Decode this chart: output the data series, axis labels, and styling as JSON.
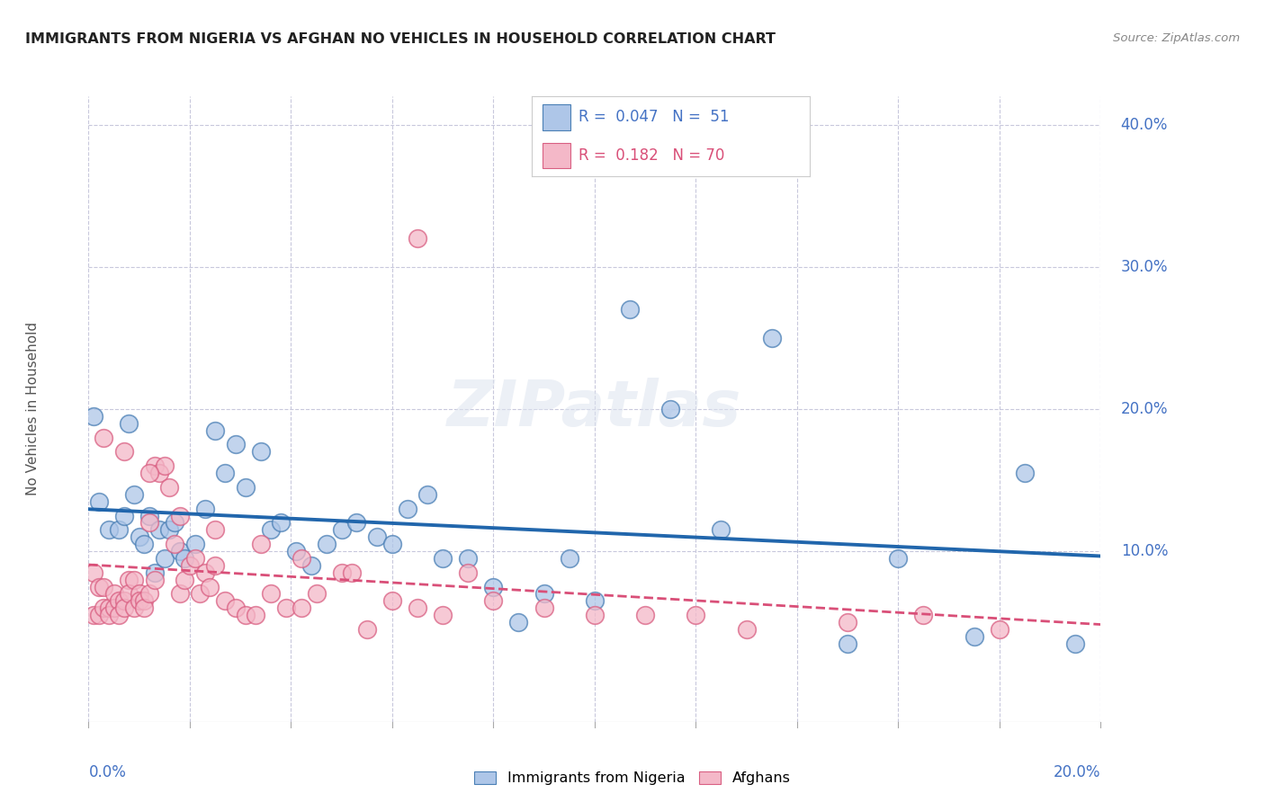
{
  "title": "IMMIGRANTS FROM NIGERIA VS AFGHAN NO VEHICLES IN HOUSEHOLD CORRELATION CHART",
  "source": "Source: ZipAtlas.com",
  "ylabel": "No Vehicles in Household",
  "xlim": [
    0.0,
    0.2
  ],
  "ylim": [
    -0.02,
    0.42
  ],
  "right_ytick_vals": [
    0.4,
    0.3,
    0.2,
    0.1
  ],
  "right_ytick_labels": [
    "40.0%",
    "30.0%",
    "20.0%",
    "10.0%"
  ],
  "legend_line1": "R =  0.047   N =  51",
  "legend_line2": "R =  0.182   N = 70",
  "legend_label1": "Immigrants from Nigeria",
  "legend_label2": "Afghans",
  "color_blue_fill": "#aec6e8",
  "color_blue_edge": "#4a7fb5",
  "color_pink_fill": "#f4b8c8",
  "color_pink_edge": "#d95f82",
  "color_blue_line": "#2166ac",
  "color_pink_line": "#d94f78",
  "grid_color": "#c8c8dc",
  "background": "#ffffff",
  "tick_color": "#888888",
  "text_color": "#333333",
  "label_color": "#4472c4",
  "nigeria_x": [
    0.001,
    0.002,
    0.004,
    0.006,
    0.007,
    0.008,
    0.009,
    0.01,
    0.011,
    0.012,
    0.013,
    0.014,
    0.015,
    0.016,
    0.017,
    0.018,
    0.019,
    0.021,
    0.023,
    0.025,
    0.027,
    0.029,
    0.031,
    0.034,
    0.036,
    0.038,
    0.041,
    0.044,
    0.047,
    0.05,
    0.053,
    0.057,
    0.06,
    0.063,
    0.067,
    0.07,
    0.075,
    0.08,
    0.085,
    0.09,
    0.095,
    0.1,
    0.107,
    0.115,
    0.125,
    0.135,
    0.15,
    0.16,
    0.175,
    0.185,
    0.195
  ],
  "nigeria_y": [
    0.195,
    0.135,
    0.115,
    0.115,
    0.125,
    0.19,
    0.14,
    0.11,
    0.105,
    0.125,
    0.085,
    0.115,
    0.095,
    0.115,
    0.12,
    0.1,
    0.095,
    0.105,
    0.13,
    0.185,
    0.155,
    0.175,
    0.145,
    0.17,
    0.115,
    0.12,
    0.1,
    0.09,
    0.105,
    0.115,
    0.12,
    0.11,
    0.105,
    0.13,
    0.14,
    0.095,
    0.095,
    0.075,
    0.05,
    0.07,
    0.095,
    0.065,
    0.27,
    0.2,
    0.115,
    0.25,
    0.035,
    0.095,
    0.04,
    0.155,
    0.035
  ],
  "afghan_x": [
    0.001,
    0.001,
    0.002,
    0.002,
    0.003,
    0.003,
    0.004,
    0.004,
    0.005,
    0.005,
    0.006,
    0.006,
    0.007,
    0.007,
    0.008,
    0.008,
    0.009,
    0.009,
    0.01,
    0.01,
    0.011,
    0.011,
    0.012,
    0.012,
    0.013,
    0.013,
    0.014,
    0.015,
    0.016,
    0.017,
    0.018,
    0.019,
    0.02,
    0.021,
    0.022,
    0.023,
    0.024,
    0.025,
    0.027,
    0.029,
    0.031,
    0.033,
    0.036,
    0.039,
    0.042,
    0.045,
    0.05,
    0.055,
    0.06,
    0.065,
    0.07,
    0.075,
    0.08,
    0.09,
    0.1,
    0.11,
    0.12,
    0.13,
    0.15,
    0.165,
    0.18,
    0.003,
    0.007,
    0.012,
    0.018,
    0.025,
    0.034,
    0.042,
    0.052,
    0.065
  ],
  "afghan_y": [
    0.085,
    0.055,
    0.075,
    0.055,
    0.075,
    0.06,
    0.06,
    0.055,
    0.07,
    0.06,
    0.065,
    0.055,
    0.065,
    0.06,
    0.08,
    0.07,
    0.08,
    0.06,
    0.07,
    0.065,
    0.065,
    0.06,
    0.12,
    0.07,
    0.16,
    0.08,
    0.155,
    0.16,
    0.145,
    0.105,
    0.07,
    0.08,
    0.09,
    0.095,
    0.07,
    0.085,
    0.075,
    0.09,
    0.065,
    0.06,
    0.055,
    0.055,
    0.07,
    0.06,
    0.06,
    0.07,
    0.085,
    0.045,
    0.065,
    0.06,
    0.055,
    0.085,
    0.065,
    0.06,
    0.055,
    0.055,
    0.055,
    0.045,
    0.05,
    0.055,
    0.045,
    0.18,
    0.17,
    0.155,
    0.125,
    0.115,
    0.105,
    0.095,
    0.085,
    0.32
  ]
}
